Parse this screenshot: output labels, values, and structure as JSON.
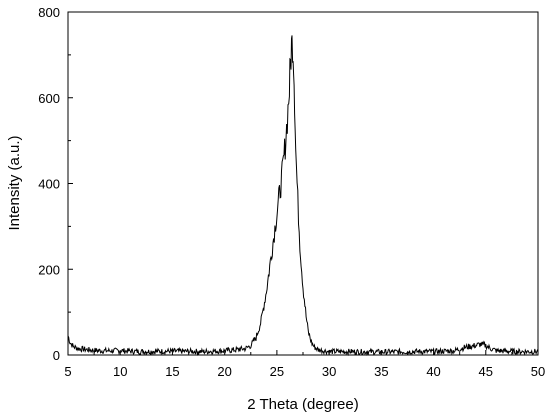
{
  "chart_data": {
    "type": "line",
    "title": "",
    "xlabel": "2 Theta (degree)",
    "ylabel": "Intensity (a.u.)",
    "xlim": [
      5,
      50
    ],
    "ylim": [
      0,
      800
    ],
    "xticks": [
      5,
      10,
      15,
      20,
      25,
      30,
      35,
      40,
      45,
      50
    ],
    "yticks": [
      0,
      200,
      400,
      600,
      800
    ],
    "grid": false,
    "legend": "none",
    "line_color": "#000000",
    "series": [
      {
        "x": [
          5.0,
          5.2,
          5.5,
          6.0,
          7.0,
          8.0,
          10.0,
          12.0,
          15.0,
          18.0,
          20.0,
          21.0,
          22.0,
          22.5,
          23.0,
          23.5,
          24.0,
          24.5,
          25.0,
          25.5,
          25.8,
          26.0,
          26.2,
          26.3,
          26.4,
          26.5,
          26.6,
          26.7,
          26.8,
          27.0,
          27.2,
          27.5,
          27.8,
          28.0,
          28.3,
          28.6,
          29.0,
          29.5,
          30.0,
          32.0,
          35.0,
          38.0,
          40.0,
          42.0,
          43.0,
          44.0,
          44.5,
          45.0,
          45.5,
          46.0,
          47.0,
          48.0,
          50.0
        ],
        "y": [
          45,
          30,
          20,
          15,
          12,
          10,
          10,
          8,
          9,
          8,
          10,
          12,
          15,
          22,
          40,
          80,
          150,
          240,
          330,
          420,
          490,
          550,
          620,
          680,
          720,
          730,
          690,
          600,
          480,
          360,
          260,
          160,
          90,
          55,
          30,
          18,
          12,
          10,
          8,
          8,
          7,
          8,
          8,
          10,
          18,
          22,
          25,
          22,
          15,
          10,
          9,
          8,
          8
        ]
      }
    ]
  }
}
